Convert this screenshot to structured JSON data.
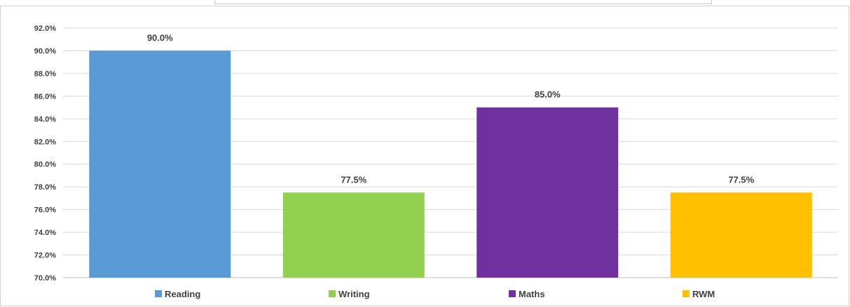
{
  "chart_data": {
    "type": "bar",
    "categories": [
      "Reading",
      "Writing",
      "Maths",
      "RWM"
    ],
    "values": [
      90.0,
      77.5,
      85.0,
      77.5
    ],
    "colors": [
      "#5b9bd5",
      "#92d050",
      "#7030a0",
      "#ffc000"
    ],
    "data_labels": [
      "90.0%",
      "77.5%",
      "85.0%",
      "77.5%"
    ],
    "y_ticks": [
      "70.0%",
      "72.0%",
      "74.0%",
      "76.0%",
      "78.0%",
      "80.0%",
      "82.0%",
      "84.0%",
      "86.0%",
      "88.0%",
      "90.0%",
      "92.0%"
    ],
    "ylim": [
      70,
      92
    ],
    "grid": true,
    "legend": "bottom",
    "title": "",
    "xlabel": "",
    "ylabel": ""
  }
}
